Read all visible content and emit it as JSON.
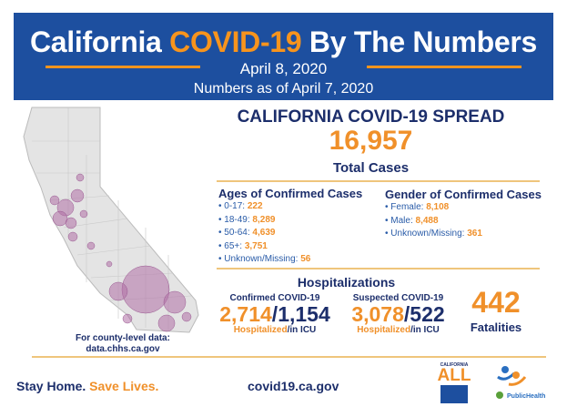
{
  "header": {
    "title_prefix": "California ",
    "title_highlight": "COVID-19",
    "title_suffix": " By The Numbers",
    "date": "April 8, 2020",
    "as_of": "Numbers as of April 7, 2020"
  },
  "spread": {
    "heading": "CALIFORNIA COVID-19 SPREAD",
    "total": "16,957",
    "total_label": "Total Cases"
  },
  "ages": {
    "heading": "Ages of Confirmed Cases",
    "items": [
      {
        "label": "0-17: ",
        "value": "222"
      },
      {
        "label": "18-49: ",
        "value": "8,289"
      },
      {
        "label": "50-64: ",
        "value": "4,639"
      },
      {
        "label": "65+: ",
        "value": "3,751"
      },
      {
        "label": "Unknown/Missing: ",
        "value": "56"
      }
    ]
  },
  "gender": {
    "heading": "Gender of Confirmed Cases",
    "items": [
      {
        "label": "Female: ",
        "value": "8,108"
      },
      {
        "label": "Male: ",
        "value": "8,488"
      },
      {
        "label": "Unknown/Missing: ",
        "value": "361"
      }
    ]
  },
  "hosp": {
    "heading": "Hospitalizations",
    "confirmed": {
      "label": "Confirmed COVID-19",
      "hospitalized": "2,714",
      "icu": "1,154",
      "sub_h": "Hospitalized",
      "sub_icu": "/in ICU"
    },
    "suspected": {
      "label": "Suspected COVID-19",
      "hospitalized": "3,078",
      "icu": "522",
      "sub_h": "Hospitalized",
      "sub_icu": "/in ICU"
    }
  },
  "fatalities": {
    "value": "442",
    "label": "Fatalities"
  },
  "county": {
    "line1": "For county-level data:",
    "line2": "data.chhs.ca.gov"
  },
  "footer": {
    "stay": "Stay Home. ",
    "save": "Save Lives.",
    "url": "covid19.ca.gov",
    "logo1_top": "CALIFORNIA",
    "logo1_main": "ALL",
    "logo2": "PublicHealth"
  },
  "colors": {
    "blue": "#1d4f9f",
    "orange": "#f7941d",
    "navy": "#1c2e6b",
    "bubble": "#b06fa6"
  }
}
